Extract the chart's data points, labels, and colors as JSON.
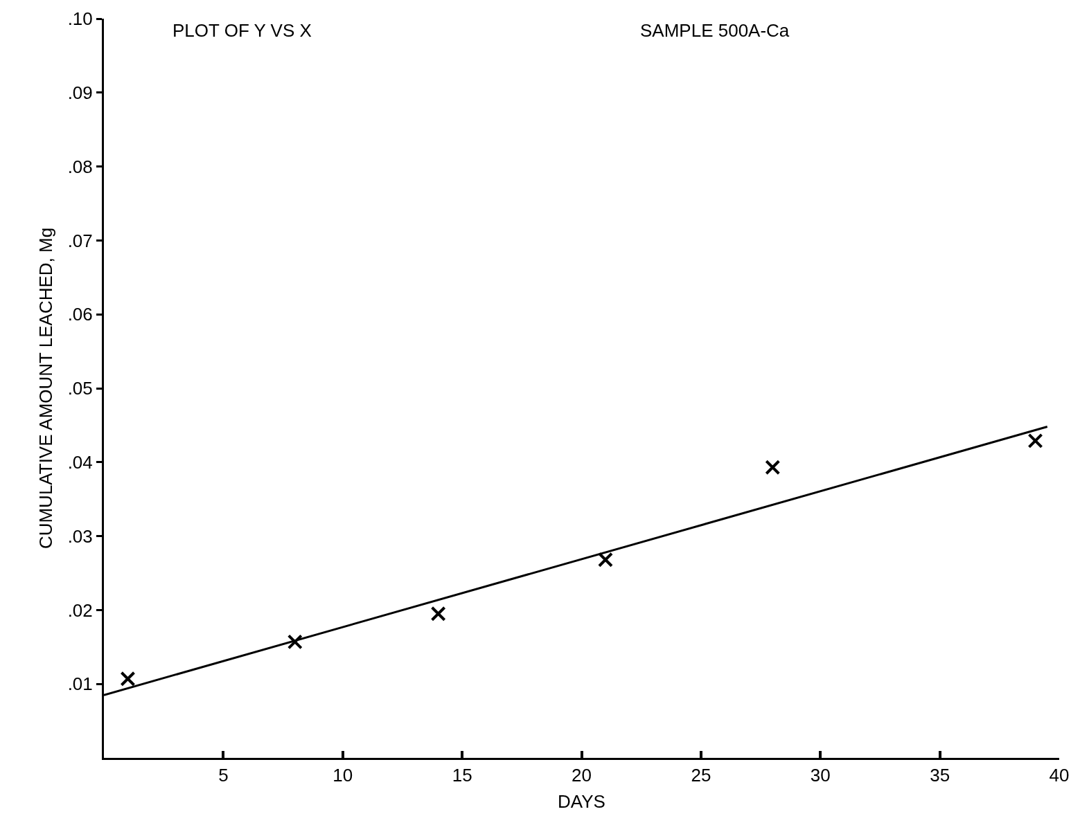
{
  "chart_data": {
    "type": "scatter",
    "xlabel": "DAYS",
    "ylabel": "CUMULATIVE AMOUNT LEACHED, Mg",
    "annotations": [
      "PLOT OF Y VS X",
      "SAMPLE 500A-Ca"
    ],
    "x": [
      1,
      8,
      14,
      21,
      28,
      39
    ],
    "series": [
      {
        "color": "#000000",
        "values": [
          0.0107,
          0.0157,
          0.0195,
          0.0268,
          0.0393,
          0.0429
        ],
        "marker": "cross"
      },
      {
        "type": "line",
        "color": "#000000",
        "x": [
          0,
          39.5
        ],
        "values": [
          0.0085,
          0.0448
        ],
        "line_style": "solid"
      }
    ],
    "xlim": [
      0,
      40
    ],
    "xticks": [
      5,
      10,
      15,
      20,
      25,
      30,
      35,
      40
    ],
    "ylim": [
      0,
      0.1
    ],
    "yticks": [
      {
        "value": 0.01,
        "label": ".01"
      },
      {
        "value": 0.02,
        "label": ".02"
      },
      {
        "value": 0.03,
        "label": ".03"
      },
      {
        "value": 0.04,
        "label": ".04"
      },
      {
        "value": 0.05,
        "label": ".05"
      },
      {
        "value": 0.06,
        "label": ".06"
      },
      {
        "value": 0.07,
        "label": ".07"
      },
      {
        "value": 0.08,
        "label": ".08"
      },
      {
        "value": 0.09,
        "label": ".09"
      },
      {
        "value": 0.1,
        "label": ".10"
      }
    ]
  }
}
